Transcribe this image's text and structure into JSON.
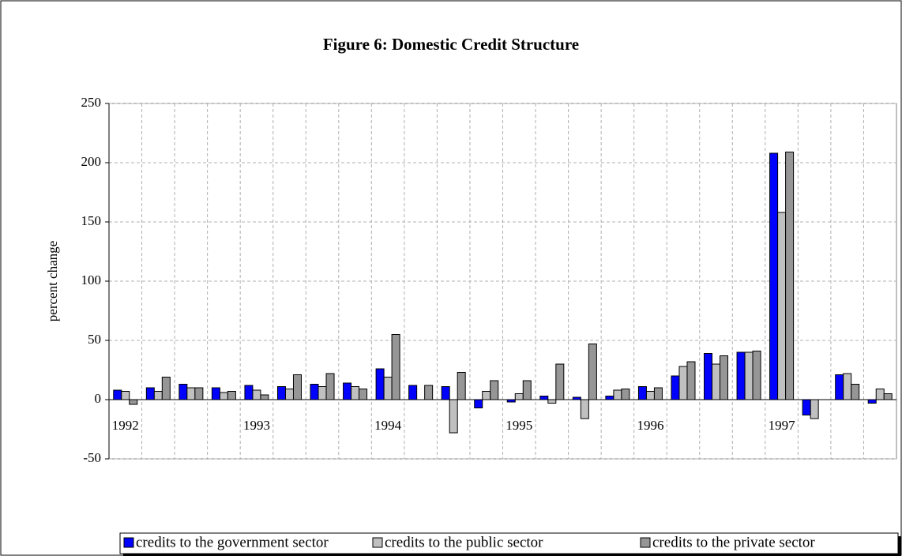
{
  "chart_data": {
    "type": "bar",
    "title": "Figure 6: Domestic Credit Structure",
    "ylabel": "percent change",
    "categories": [
      "1992",
      null,
      null,
      null,
      "1993",
      null,
      null,
      null,
      "1994",
      null,
      null,
      null,
      "1995",
      null,
      null,
      null,
      "1996",
      null,
      null,
      null,
      "1997",
      null,
      null,
      null
    ],
    "series": [
      {
        "name": "credits to the government sector",
        "color": "#0000ff",
        "values": [
          8,
          10,
          13,
          10,
          12,
          11,
          13,
          14,
          26,
          12,
          11,
          -7,
          -2,
          3,
          2,
          3,
          11,
          20,
          39,
          40,
          208,
          -13,
          21,
          -3
        ]
      },
      {
        "name": "credits to the public sector",
        "color": "#c0c0c0",
        "values": [
          7,
          7,
          10,
          6,
          8,
          9,
          11,
          11,
          19,
          0,
          -28,
          7,
          5,
          -3,
          -16,
          8,
          7,
          28,
          30,
          40,
          158,
          -16,
          22,
          9
        ]
      },
      {
        "name": "credits to the private sector",
        "color": "#969696",
        "values": [
          -4,
          19,
          10,
          7,
          4,
          21,
          22,
          9,
          55,
          12,
          23,
          16,
          16,
          30,
          47,
          9,
          10,
          32,
          37,
          41,
          209,
          0,
          13,
          5
        ]
      }
    ],
    "ylim": [
      -50,
      250
    ],
    "yticks": [
      -50,
      0,
      50,
      100,
      150,
      200,
      250
    ],
    "grid": true,
    "legend": "bottom"
  }
}
